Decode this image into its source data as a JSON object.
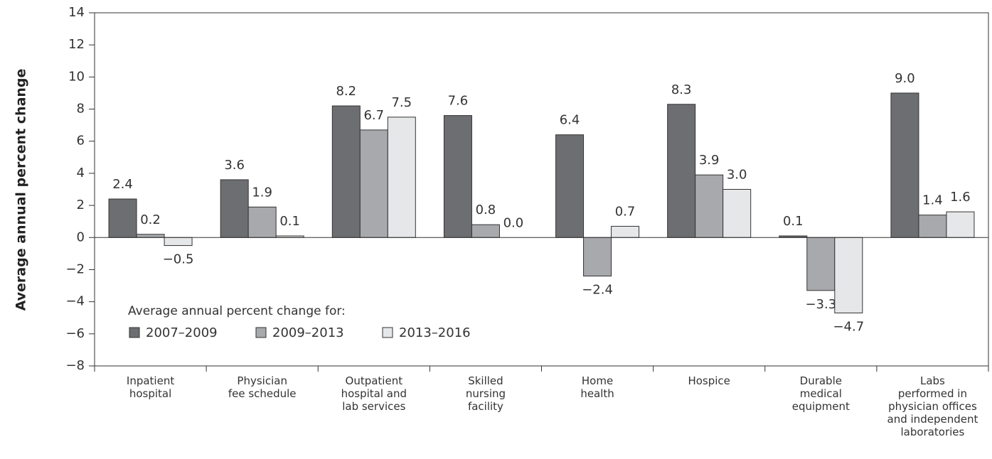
{
  "chart_data": {
    "type": "bar",
    "y_label": "Average annual percent change",
    "legend_title": "Average annual percent change for:",
    "categories": [
      "Inpatient\nhospital",
      "Physician\nfee schedule",
      "Outpatient\nhospital and\nlab services",
      "Skilled\nnursing\nfacility",
      "Home\nhealth",
      "Hospice",
      "Durable\nmedical\nequipment",
      "Labs\nperformed in\nphysician offices\nand independent\nlaboratories"
    ],
    "series": [
      {
        "name": "2007–2009",
        "color": "#6d6e71",
        "values": [
          2.4,
          3.6,
          8.2,
          7.6,
          6.4,
          8.3,
          0.1,
          9.0
        ],
        "value_labels": [
          "2.4",
          "3.6",
          "8.2",
          "7.6",
          "6.4",
          "8.3",
          "0.1",
          "9.0"
        ]
      },
      {
        "name": "2009–2013",
        "color": "#a7a9ac",
        "values": [
          0.2,
          1.9,
          6.7,
          0.8,
          -2.4,
          3.9,
          -3.3,
          1.4
        ],
        "value_labels": [
          "0.2",
          "1.9",
          "6.7",
          "0.8",
          "−2.4",
          "3.9",
          "−3.3",
          "1.4"
        ]
      },
      {
        "name": "2013–2016",
        "color": "#e6e7e8",
        "values": [
          -0.5,
          0.1,
          7.5,
          0.0,
          0.7,
          3.0,
          -4.7,
          1.6
        ],
        "value_labels": [
          "−0.5",
          "0.1",
          "7.5",
          "0.0",
          "0.7",
          "3.0",
          "−4.7",
          "1.6"
        ]
      }
    ],
    "ylim": [
      -8,
      14
    ],
    "yticks": [
      {
        "value": -8,
        "label": "−8"
      },
      {
        "value": -6,
        "label": "−6"
      },
      {
        "value": -4,
        "label": "−4"
      },
      {
        "value": -2,
        "label": "−2"
      },
      0,
      2,
      4,
      6,
      8,
      10,
      12,
      14
    ],
    "legend_position": "lower left"
  }
}
